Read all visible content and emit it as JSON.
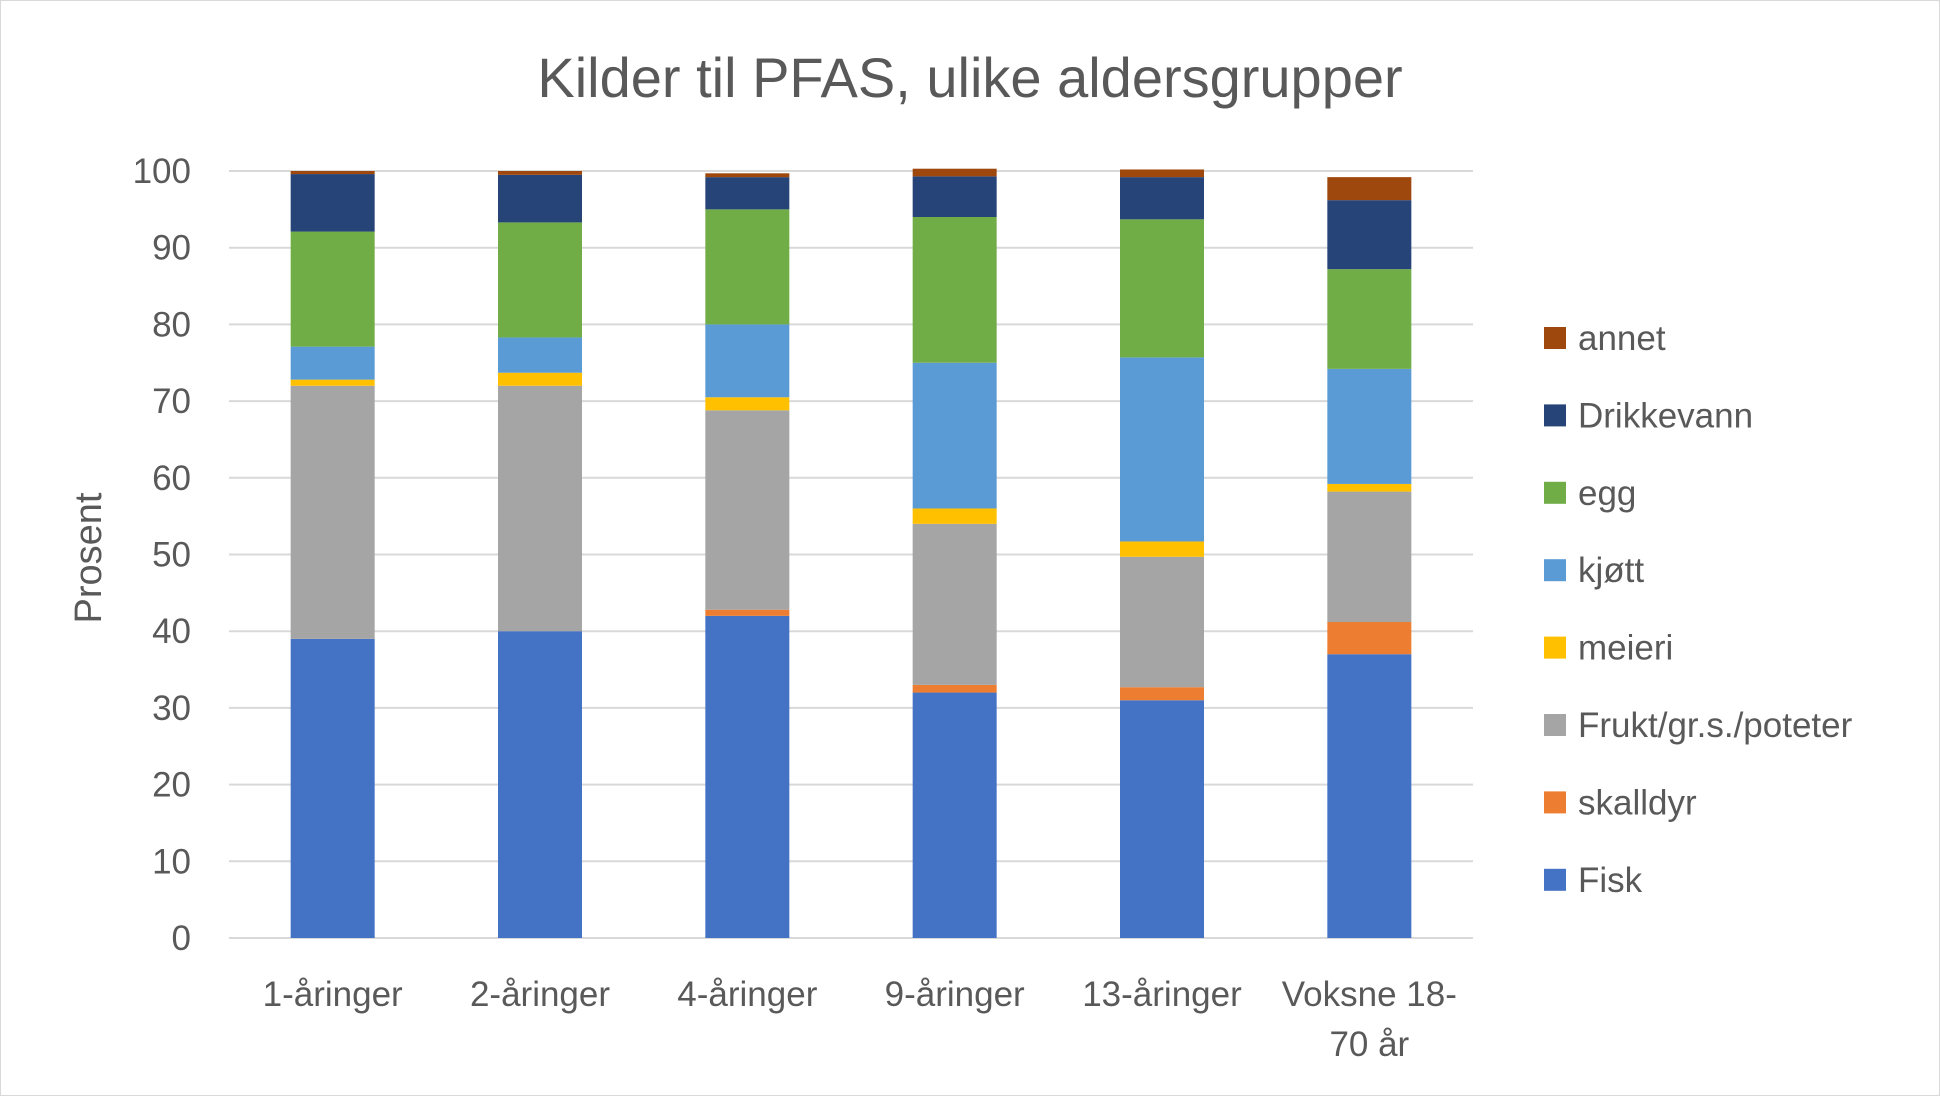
{
  "chart_data": {
    "type": "bar",
    "stacked": true,
    "title": "Kilder til PFAS, ulike aldersgrupper",
    "ylabel": "Prosent",
    "xlabel": "",
    "ylim": [
      0,
      100
    ],
    "yticks": [
      0,
      10,
      20,
      30,
      40,
      50,
      60,
      70,
      80,
      90,
      100
    ],
    "grid": true,
    "legend_position": "right",
    "categories": [
      "1-åringer",
      "2-åringer",
      "4-åringer",
      "9-åringer",
      "13-åringer",
      "Voksne  18-70 år"
    ],
    "category_lines": [
      [
        "1-åringer"
      ],
      [
        "2-åringer"
      ],
      [
        "4-åringer"
      ],
      [
        "9-åringer"
      ],
      [
        "13-åringer"
      ],
      [
        "Voksne  18-",
        "70 år"
      ]
    ],
    "series": [
      {
        "name": "Fisk",
        "color": "#4472c4",
        "values": [
          39,
          40,
          42,
          32,
          31,
          37
        ]
      },
      {
        "name": "skalldyr",
        "color": "#ed7d31",
        "values": [
          0,
          0,
          0.8,
          1,
          1.7,
          4.2
        ]
      },
      {
        "name": "Frukt/gr.s./poteter",
        "color": "#a5a5a5",
        "values": [
          33,
          32,
          26,
          21,
          17,
          17
        ]
      },
      {
        "name": "meieri",
        "color": "#ffc000",
        "values": [
          0.8,
          1.7,
          1.7,
          2,
          2,
          1
        ]
      },
      {
        "name": "kjøtt",
        "color": "#5b9bd5",
        "values": [
          4.3,
          4.6,
          9.5,
          19,
          24,
          15
        ]
      },
      {
        "name": "egg",
        "color": "#70ad47",
        "values": [
          15,
          15,
          15,
          19,
          18,
          13
        ]
      },
      {
        "name": "Drikkevann",
        "color": "#264478",
        "values": [
          7.5,
          6.2,
          4.2,
          5.3,
          5.5,
          9
        ]
      },
      {
        "name": "annet",
        "color": "#9e480e",
        "values": [
          0.4,
          0.5,
          0.5,
          1,
          1,
          3
        ]
      }
    ]
  }
}
